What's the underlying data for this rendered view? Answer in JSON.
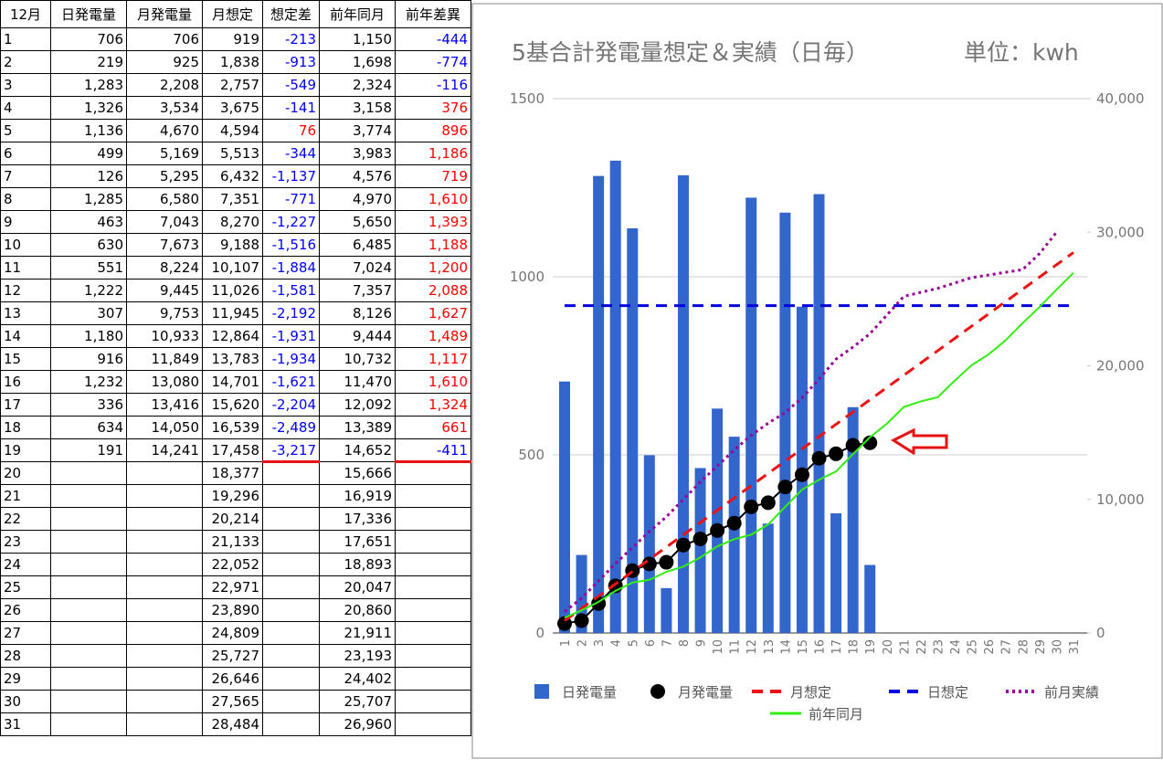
{
  "table": {
    "header": [
      "12月",
      "日発電量",
      "月発電量",
      "月想定",
      "想定差",
      "前年同月",
      "前年差異"
    ],
    "rows": [
      [
        "1",
        "706",
        "706",
        "919",
        "-213",
        "1,150",
        "-444"
      ],
      [
        "2",
        "219",
        "925",
        "1,838",
        "-913",
        "1,698",
        "-774"
      ],
      [
        "3",
        "1,283",
        "2,208",
        "2,757",
        "-549",
        "2,324",
        "-116"
      ],
      [
        "4",
        "1,326",
        "3,534",
        "3,675",
        "-141",
        "3,158",
        "376"
      ],
      [
        "5",
        "1,136",
        "4,670",
        "4,594",
        "76",
        "3,774",
        "896"
      ],
      [
        "6",
        "499",
        "5,169",
        "5,513",
        "-344",
        "3,983",
        "1,186"
      ],
      [
        "7",
        "126",
        "5,295",
        "6,432",
        "-1,137",
        "4,576",
        "719"
      ],
      [
        "8",
        "1,285",
        "6,580",
        "7,351",
        "-771",
        "4,970",
        "1,610"
      ],
      [
        "9",
        "463",
        "7,043",
        "8,270",
        "-1,227",
        "5,650",
        "1,393"
      ],
      [
        "10",
        "630",
        "7,673",
        "9,188",
        "-1,516",
        "6,485",
        "1,188"
      ],
      [
        "11",
        "551",
        "8,224",
        "10,107",
        "-1,884",
        "7,024",
        "1,200"
      ],
      [
        "12",
        "1,222",
        "9,445",
        "11,026",
        "-1,581",
        "7,357",
        "2,088"
      ],
      [
        "13",
        "307",
        "9,753",
        "11,945",
        "-2,192",
        "8,126",
        "1,627"
      ],
      [
        "14",
        "1,180",
        "10,933",
        "12,864",
        "-1,931",
        "9,444",
        "1,489"
      ],
      [
        "15",
        "916",
        "11,849",
        "13,783",
        "-1,934",
        "10,732",
        "1,117"
      ],
      [
        "16",
        "1,232",
        "13,080",
        "14,701",
        "-1,621",
        "11,470",
        "1,610"
      ],
      [
        "17",
        "336",
        "13,416",
        "15,620",
        "-2,204",
        "12,092",
        "1,324"
      ],
      [
        "18",
        "634",
        "14,050",
        "16,539",
        "-2,489",
        "13,389",
        "661"
      ],
      [
        "19",
        "191",
        "14,241",
        "17,458",
        "-3,217",
        "14,652",
        "-411"
      ],
      [
        "20",
        null,
        null,
        "18,377",
        null,
        "15,666",
        null
      ],
      [
        "21",
        null,
        null,
        "19,296",
        null,
        "16,919",
        null
      ],
      [
        "22",
        null,
        null,
        "20,214",
        null,
        "17,336",
        null
      ],
      [
        "23",
        null,
        null,
        "21,133",
        null,
        "17,651",
        null
      ],
      [
        "24",
        null,
        null,
        "22,052",
        null,
        "18,893",
        null
      ],
      [
        "25",
        null,
        null,
        "22,971",
        null,
        "20,047",
        null
      ],
      [
        "26",
        null,
        null,
        "23,890",
        null,
        "20,860",
        null
      ],
      [
        "27",
        null,
        null,
        "24,809",
        null,
        "21,911",
        null
      ],
      [
        "28",
        null,
        null,
        "25,727",
        null,
        "23,193",
        null
      ],
      [
        "29",
        null,
        null,
        "26,646",
        null,
        "24,402",
        null
      ],
      [
        "30",
        null,
        null,
        "27,565",
        null,
        "25,707",
        null
      ],
      [
        "31",
        null,
        null,
        "28,484",
        null,
        "26,960",
        null
      ]
    ],
    "negative_color": "#0000ff",
    "positive_color": "#ff0000"
  },
  "chart_data": {
    "type": "combo",
    "title": "5基合計発電量想定＆実績（日毎）",
    "subtitle": "単位：kwh",
    "categories": [
      "1",
      "2",
      "3",
      "4",
      "5",
      "6",
      "7",
      "8",
      "9",
      "10",
      "11",
      "12",
      "13",
      "14",
      "15",
      "16",
      "17",
      "18",
      "19",
      "20",
      "21",
      "22",
      "23",
      "24",
      "25",
      "26",
      "27",
      "28",
      "29",
      "30",
      "31"
    ],
    "ylim": [
      0,
      1500
    ],
    "yticks": [
      0,
      500,
      1000,
      1500
    ],
    "y2lim": [
      0,
      40000
    ],
    "y2ticks": [
      0,
      {
        "value": 10000,
        "label": "10,000"
      },
      {
        "value": 20000,
        "label": "20,000"
      },
      {
        "value": 30000,
        "label": "30,000"
      },
      {
        "value": 40000,
        "label": "40,000"
      }
    ],
    "grid": true,
    "series": [
      {
        "name": "日発電量",
        "type": "bar",
        "color": "#3366cc",
        "values": [
          706,
          219,
          1283,
          1326,
          1136,
          499,
          126,
          1285,
          463,
          630,
          551,
          1222,
          307,
          1180,
          916,
          1232,
          336,
          634,
          191,
          null,
          null,
          null,
          null,
          null,
          null,
          null,
          null,
          null,
          null,
          null,
          null
        ]
      },
      {
        "name": "月発電量",
        "type": "line",
        "marker": "circle",
        "dash": "solid",
        "color": "#000000",
        "axis": "y2",
        "values": [
          706,
          925,
          2208,
          3534,
          4670,
          5169,
          5295,
          6580,
          7043,
          7673,
          8224,
          9445,
          9753,
          10933,
          11849,
          13080,
          13416,
          14050,
          14241,
          null,
          null,
          null,
          null,
          null,
          null,
          null,
          null,
          null,
          null,
          null,
          null
        ]
      },
      {
        "name": "月想定",
        "type": "line",
        "dash": "dashed",
        "color": "#ee1111",
        "axis": "y2",
        "values": [
          919,
          1838,
          2757,
          3675,
          4594,
          5513,
          6432,
          7351,
          8270,
          9188,
          10107,
          11026,
          11945,
          12864,
          13783,
          14701,
          15620,
          16539,
          17458,
          18377,
          19296,
          20214,
          21133,
          22052,
          22971,
          23890,
          24809,
          25727,
          26646,
          27565,
          28484
        ]
      },
      {
        "name": "日想定",
        "type": "line",
        "dash": "dashed",
        "color": "#0000dd",
        "values": [
          919,
          919,
          919,
          919,
          919,
          919,
          919,
          919,
          919,
          919,
          919,
          919,
          919,
          919,
          919,
          919,
          919,
          919,
          919,
          919,
          919,
          919,
          919,
          919,
          919,
          919,
          919,
          919,
          919,
          919,
          919
        ]
      },
      {
        "name": "前月実績",
        "type": "line",
        "dash": "dotted",
        "color": "#990099",
        "axis": "y2",
        "values": [
          1600,
          2600,
          3900,
          5200,
          6400,
          7600,
          8700,
          10000,
          11300,
          12500,
          13700,
          14800,
          15700,
          16500,
          17600,
          19000,
          20500,
          21400,
          22400,
          23800,
          25200,
          25500,
          25800,
          26200,
          26600,
          26800,
          27000,
          27200,
          28400,
          30000,
          null
        ]
      },
      {
        "name": "前年同月",
        "type": "line",
        "dash": "solid",
        "color": "#33ee11",
        "axis": "y2",
        "values": [
          1150,
          1698,
          2324,
          3158,
          3774,
          3983,
          4576,
          4970,
          5650,
          6485,
          7024,
          7357,
          8126,
          9444,
          10732,
          11470,
          12092,
          13389,
          14652,
          15666,
          16919,
          17336,
          17651,
          18893,
          20047,
          20860,
          21911,
          23193,
          24402,
          25707,
          26960
        ]
      }
    ]
  }
}
